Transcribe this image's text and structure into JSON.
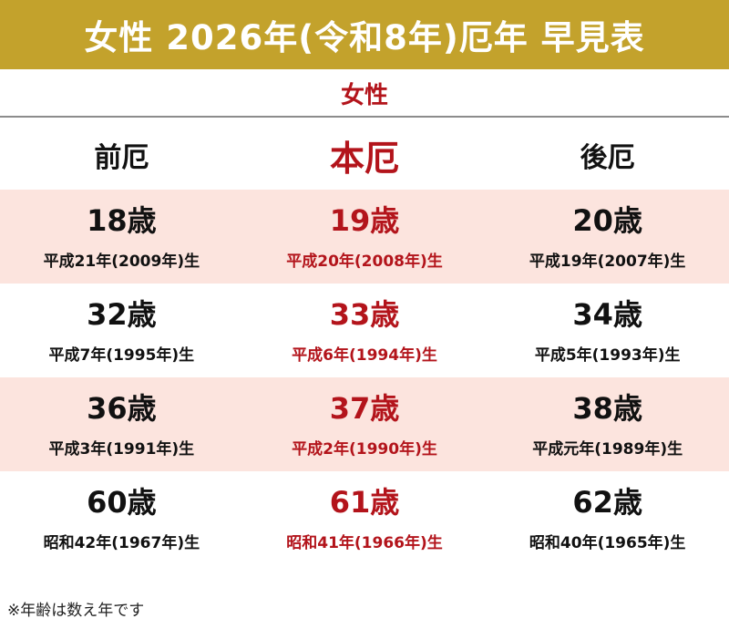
{
  "title": "女性 2026年(令和8年)厄年 早見表",
  "subtitle": "女性",
  "colors": {
    "banner": "#c3a22c",
    "accent_red": "#b3141b",
    "row_shade": "#fce4de"
  },
  "columns": [
    "前厄",
    "本厄",
    "後厄"
  ],
  "rows": [
    {
      "cells": [
        {
          "age": "18歳",
          "birth": "平成21年(2009年)生"
        },
        {
          "age": "19歳",
          "birth": "平成20年(2008年)生"
        },
        {
          "age": "20歳",
          "birth": "平成19年(2007年)生"
        }
      ]
    },
    {
      "cells": [
        {
          "age": "32歳",
          "birth": "平成7年(1995年)生"
        },
        {
          "age": "33歳",
          "birth": "平成6年(1994年)生"
        },
        {
          "age": "34歳",
          "birth": "平成5年(1993年)生"
        }
      ]
    },
    {
      "cells": [
        {
          "age": "36歳",
          "birth": "平成3年(1991年)生"
        },
        {
          "age": "37歳",
          "birth": "平成2年(1990年)生"
        },
        {
          "age": "38歳",
          "birth": "平成元年(1989年)生"
        }
      ]
    },
    {
      "cells": [
        {
          "age": "60歳",
          "birth": "昭和42年(1967年)生"
        },
        {
          "age": "61歳",
          "birth": "昭和41年(1966年)生"
        },
        {
          "age": "62歳",
          "birth": "昭和40年(1965年)生"
        }
      ]
    }
  ],
  "note": "※年齢は数え年です"
}
